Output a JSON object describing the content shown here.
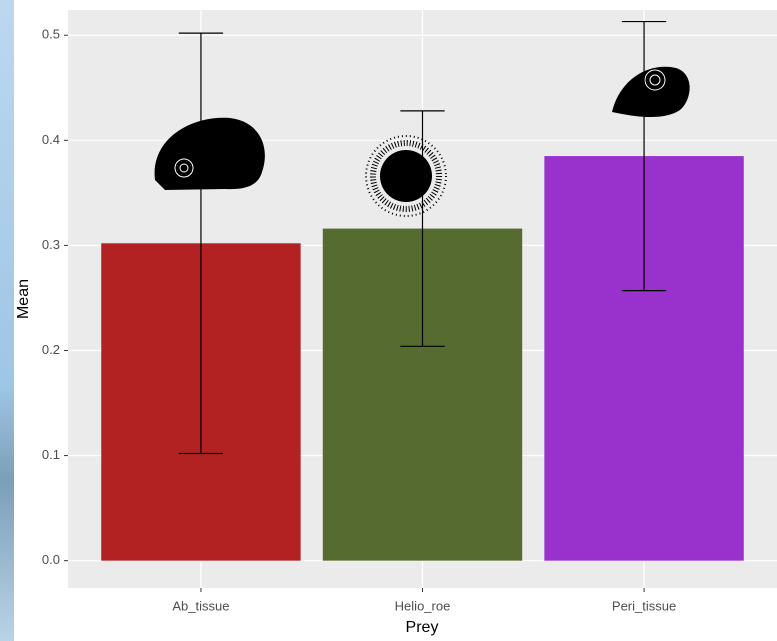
{
  "chart_data": {
    "type": "bar",
    "x_label": "Prey",
    "y_label": "Mean",
    "categories": [
      "Ab_tissue",
      "Helio_roe",
      "Peri_tissue"
    ],
    "values": [
      0.302,
      0.316,
      0.385
    ],
    "errors": [
      0.2,
      0.112,
      0.128
    ],
    "colors": [
      "#b22222",
      "#556b2f",
      "#9932cc"
    ],
    "ylim": [
      -0.026,
      0.524
    ],
    "yticks": [
      {
        "value": 0,
        "label": "0.0"
      },
      0.1,
      0.2,
      0.3,
      0.4,
      0.5
    ],
    "grid": true
  }
}
